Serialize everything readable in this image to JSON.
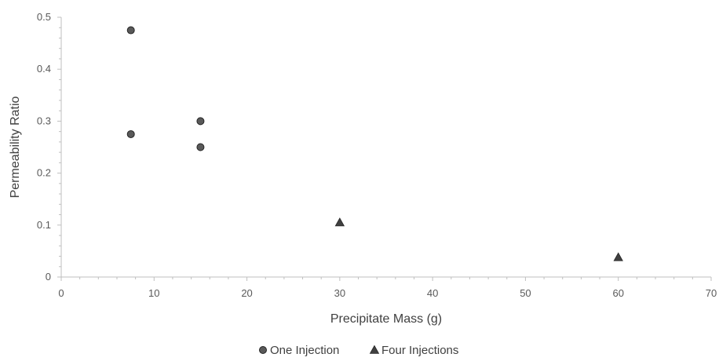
{
  "chart_data": {
    "type": "scatter",
    "title": "",
    "xlabel": "Precipitate Mass (g)",
    "ylabel": "Permeability Ratio",
    "xlim": [
      0,
      70
    ],
    "ylim": [
      0,
      0.5
    ],
    "x_ticks": [
      "0",
      "10",
      "20",
      "30",
      "40",
      "50",
      "60",
      "70"
    ],
    "y_ticks": [
      "0",
      "0.1",
      "0.2",
      "0.3",
      "0.4",
      "0.5"
    ],
    "grid": false,
    "legend_position": "bottom",
    "series": [
      {
        "name": "One Injection",
        "marker": "circle",
        "color": "#595959",
        "points": [
          {
            "x": 7.5,
            "y": 0.475
          },
          {
            "x": 7.5,
            "y": 0.275
          },
          {
            "x": 15,
            "y": 0.3
          },
          {
            "x": 15,
            "y": 0.25
          }
        ]
      },
      {
        "name": "Four Injections",
        "marker": "triangle",
        "color": "#404040",
        "points": [
          {
            "x": 30,
            "y": 0.105
          },
          {
            "x": 60,
            "y": 0.038
          }
        ]
      }
    ]
  }
}
